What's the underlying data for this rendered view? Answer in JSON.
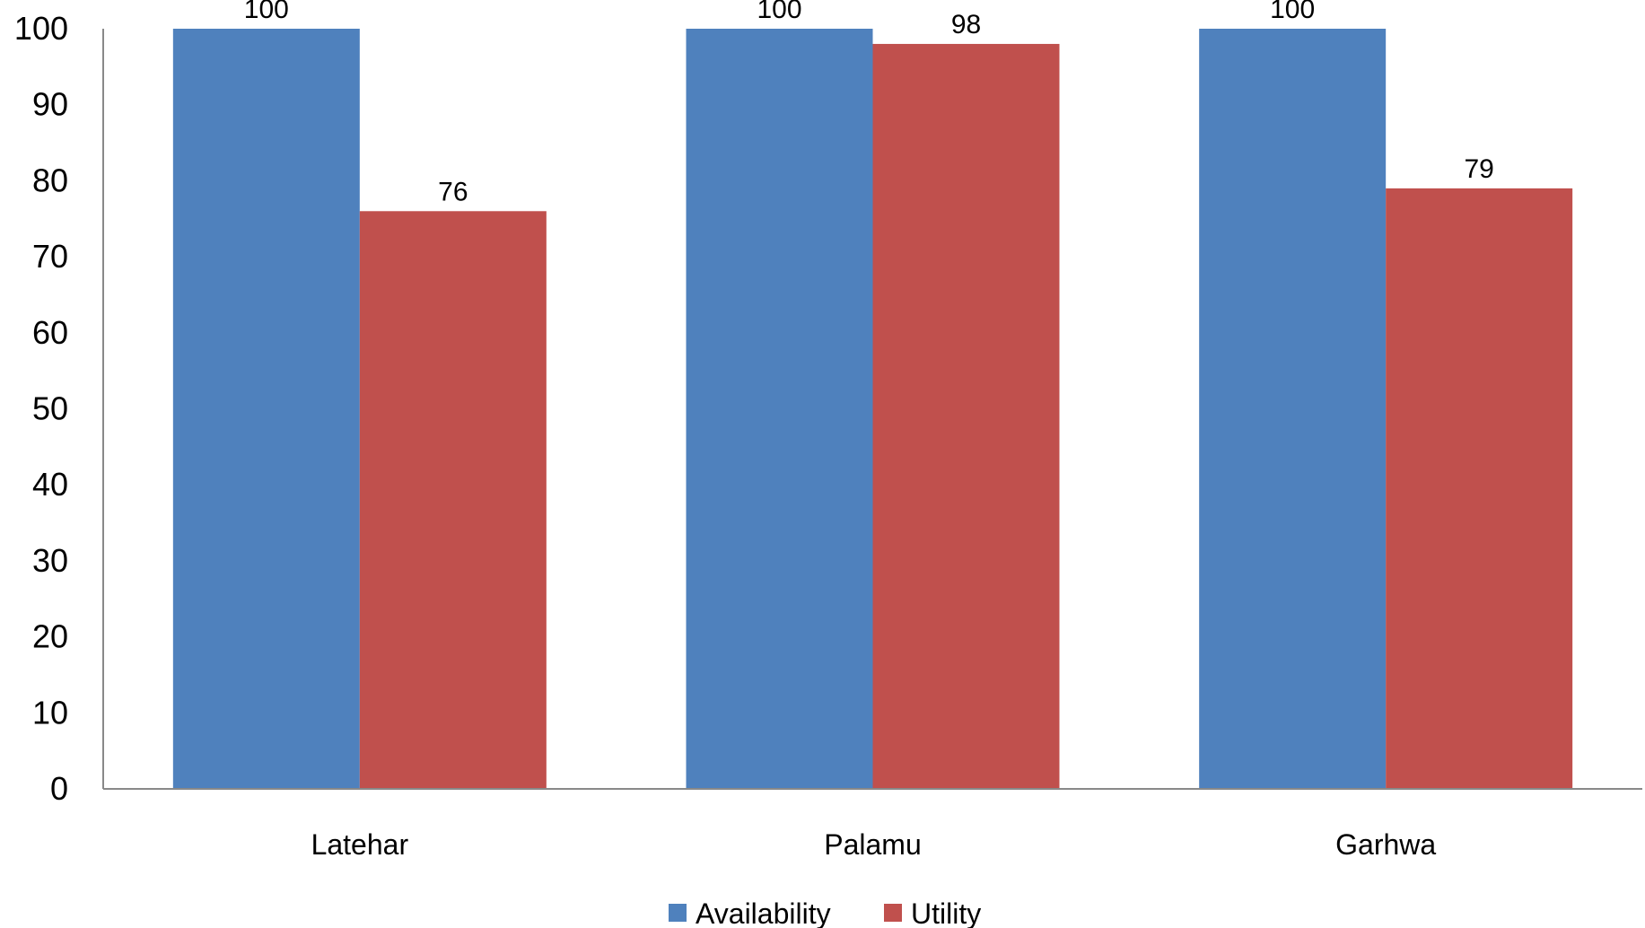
{
  "chart_data": {
    "type": "bar",
    "categories": [
      "Latehar",
      "Palamu",
      "Garhwa"
    ],
    "series": [
      {
        "name": "Availability",
        "color": "#4F81BD",
        "values": [
          100,
          100,
          100
        ],
        "labels": [
          "100",
          "100",
          "100"
        ]
      },
      {
        "name": "Utility",
        "color": "#C0504D",
        "values": [
          76,
          98,
          79
        ],
        "labels": [
          "76",
          "98",
          "79"
        ]
      }
    ],
    "ylim": [
      0,
      100
    ],
    "yticks": [
      0,
      10,
      20,
      30,
      40,
      50,
      60,
      70,
      80,
      90,
      100
    ],
    "ytick_labels": [
      "0",
      "10",
      "20",
      "30",
      "40",
      "50",
      "60",
      "70",
      "80",
      "90",
      "100"
    ],
    "grid": false,
    "legend_position": "bottom-center",
    "title": "",
    "xlabel": "",
    "ylabel": ""
  }
}
